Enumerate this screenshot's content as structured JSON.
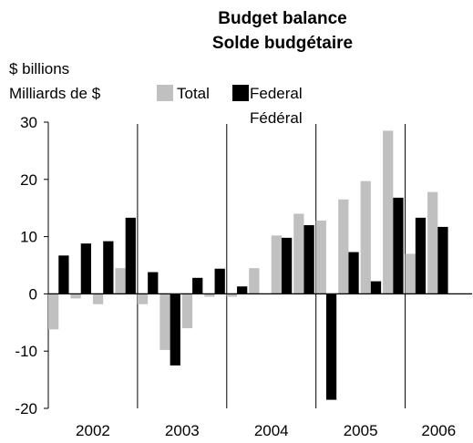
{
  "chart_data": {
    "type": "bar",
    "title": "Budget balance",
    "subtitle": "Solde budgétaire",
    "ylabel": "$ billions",
    "ylabel_fr": "Milliards de $",
    "ylim": [
      -20,
      30
    ],
    "yticks": [
      30,
      20,
      10,
      0,
      -10,
      -20
    ],
    "xticks": [
      "2002",
      "2003",
      "2004",
      "2005",
      "2006"
    ],
    "year_quarter_counts": [
      4,
      4,
      4,
      4,
      3
    ],
    "legend_position": "top",
    "series": [
      {
        "name": "Total",
        "color": "#c0c0c0",
        "values": [
          -6.2,
          -0.8,
          -1.8,
          4.5,
          -1.8,
          -9.8,
          -6.0,
          -0.5,
          -0.5,
          4.5,
          10.2,
          14.0,
          12.8,
          16.5,
          19.7,
          28.5,
          7.0,
          17.8,
          0
        ]
      },
      {
        "name": "Federal",
        "name_fr": "Fédéral",
        "color": "#000000",
        "values": [
          6.7,
          8.8,
          9.2,
          13.3,
          3.8,
          -12.5,
          2.8,
          4.4,
          1.3,
          0,
          9.8,
          12.0,
          -18.5,
          7.3,
          2.2,
          16.8,
          13.3,
          11.7,
          0
        ]
      }
    ]
  }
}
